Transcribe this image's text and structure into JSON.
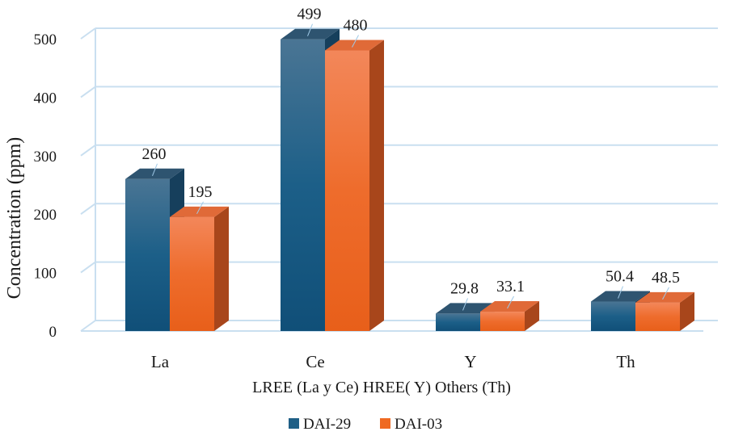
{
  "chart_data": {
    "type": "bar",
    "title": "",
    "xlabel": "LREE (La y Ce) HREE( Y) Others (Th)",
    "ylabel": "Concentration (ppm)",
    "categories": [
      "La",
      "Ce",
      "Y",
      "Th"
    ],
    "series": [
      {
        "name": "DAI-29",
        "values": [
          260,
          499,
          29.8,
          50.4
        ],
        "labels": [
          "260",
          "499",
          "29.8",
          "50.4"
        ]
      },
      {
        "name": "DAI-03",
        "values": [
          195,
          480,
          33.1,
          48.5
        ],
        "labels": [
          "195",
          "480",
          "33.1",
          "48.5"
        ]
      }
    ],
    "ylim": [
      0,
      500
    ],
    "yticks": [
      "0",
      "100",
      "200",
      "300",
      "400",
      "500"
    ],
    "grid": true,
    "legend_position": "bottom",
    "colors": {
      "DAI-29": "#1f5f86",
      "DAI-03": "#ef6a22",
      "grid": "#c9dff0"
    }
  }
}
